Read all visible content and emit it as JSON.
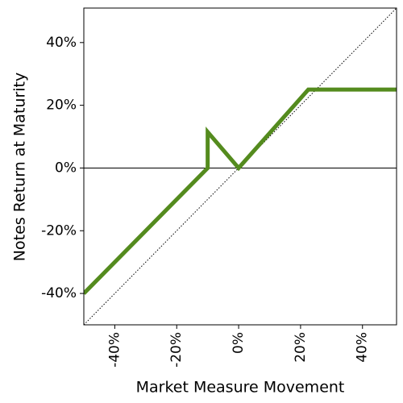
{
  "chart_data": {
    "type": "line",
    "x_label": "Market Measure Movement",
    "y_label": "Notes Return at Maturity",
    "xlim": [
      -50,
      51
    ],
    "ylim": [
      -50,
      51
    ],
    "xticks": [
      {
        "value": -40,
        "label": "-40%"
      },
      {
        "value": -20,
        "label": "-20%"
      },
      {
        "value": 0,
        "label": "0%"
      },
      {
        "value": 20,
        "label": "20%"
      },
      {
        "value": 40,
        "label": "40%"
      }
    ],
    "yticks": [
      {
        "value": -40,
        "label": "-40%"
      },
      {
        "value": -20,
        "label": "-20%"
      },
      {
        "value": 0,
        "label": "0%"
      },
      {
        "value": 20,
        "label": "20%"
      },
      {
        "value": 40,
        "label": "40%"
      }
    ],
    "hlines": [
      0
    ],
    "series": [
      {
        "color": "#000000",
        "style": "dotted",
        "width": 1,
        "x": [
          -50,
          51
        ],
        "values": [
          -50,
          51
        ]
      },
      {
        "color": "#548b1e",
        "style": "solid",
        "width": 5,
        "x": [
          -50,
          -10,
          -10,
          0,
          22.5,
          51
        ],
        "values": [
          -40,
          0,
          11.5,
          0,
          25,
          25
        ]
      }
    ]
  }
}
